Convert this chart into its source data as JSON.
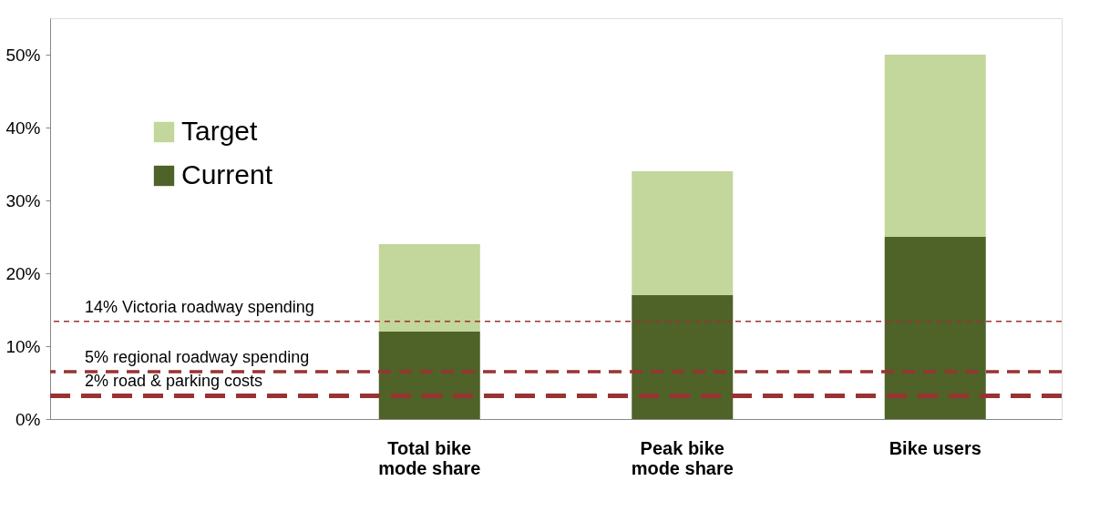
{
  "chart_data": {
    "type": "bar",
    "stacked": true,
    "categories": [
      null,
      "Total bike mode share",
      "Peak bike mode share",
      "Bike users"
    ],
    "series": [
      {
        "name": "Current",
        "color": "#4f6228",
        "values": [
          null,
          12,
          17,
          25
        ]
      },
      {
        "name": "Target",
        "color": "#c3d69b",
        "values": [
          null,
          12,
          17,
          25
        ]
      }
    ],
    "ylim": [
      0,
      55
    ],
    "yticks": [
      {
        "value": 0,
        "label": "0%"
      },
      {
        "value": 10,
        "label": "10%"
      },
      {
        "value": 20,
        "label": "20%"
      },
      {
        "value": 30,
        "label": "30%"
      },
      {
        "value": 40,
        "label": "40%"
      },
      {
        "value": 50,
        "label": "50%"
      }
    ],
    "ref_lines": [
      {
        "axis": "y",
        "value": 13.4,
        "label": "14% Victoria roadway spending",
        "color": "#993333",
        "line_style": "dashed"
      },
      {
        "axis": "y",
        "value": 6.5,
        "label": "5% regional roadway spending",
        "color": "#993333",
        "line_style": "dashed"
      },
      {
        "axis": "y",
        "value": 3.2,
        "label": "2% road & parking costs",
        "color": "#993333",
        "line_style": "dashed"
      }
    ],
    "grid": false,
    "legend": "top left"
  }
}
